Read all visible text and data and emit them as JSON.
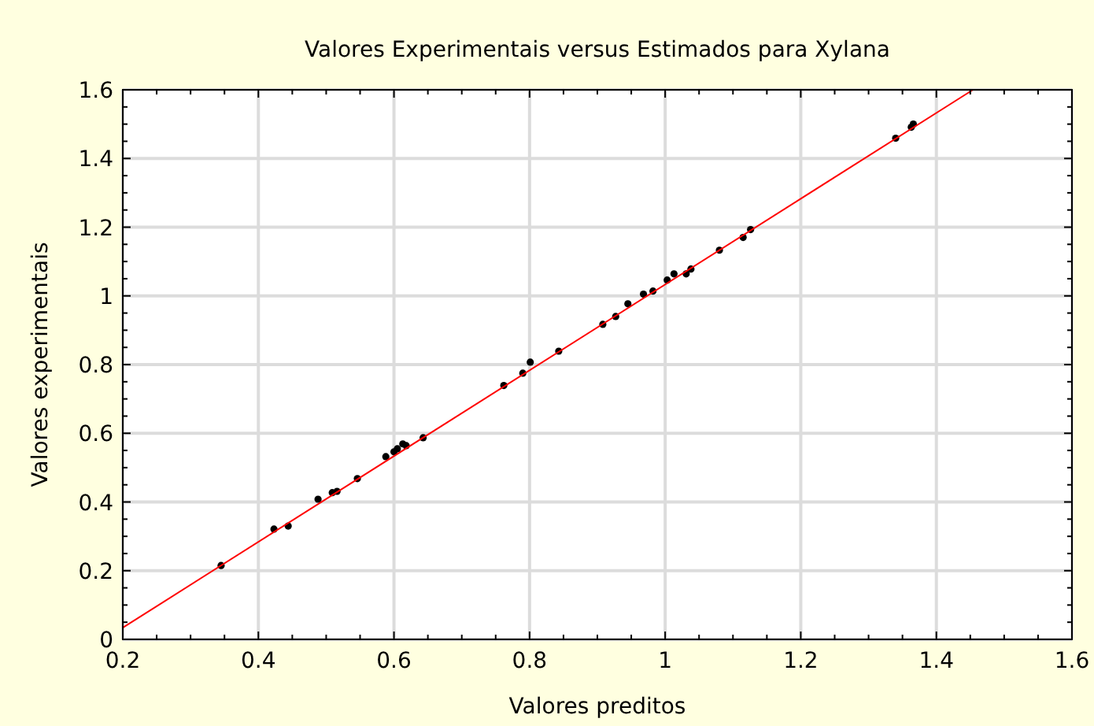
{
  "chart_data": {
    "type": "scatter",
    "title": "Valores Experimentais versus Estimados para Xylana",
    "xlabel": "Valores preditos",
    "ylabel": "Valores experimentais",
    "xlim": [
      0.2,
      1.6
    ],
    "ylim": [
      0,
      1.6
    ],
    "xticks": [
      0.2,
      0.4,
      0.6,
      0.8,
      1,
      1.2,
      1.4,
      1.6
    ],
    "yticks": [
      0,
      0.2,
      0.4,
      0.6,
      0.8,
      1,
      1.2,
      1.4,
      1.6
    ],
    "grid": true,
    "series": [
      {
        "color": "#000000",
        "marker": "circle",
        "x": [
          0.345,
          0.423,
          0.444,
          0.488,
          0.509,
          0.516,
          0.546,
          0.588,
          0.6,
          0.605,
          0.613,
          0.618,
          0.643,
          0.762,
          0.79,
          0.801,
          0.843,
          0.908,
          0.927,
          0.945,
          0.968,
          0.982,
          1.003,
          1.013,
          1.031,
          1.038,
          1.08,
          1.115,
          1.126,
          1.34,
          1.363,
          1.366
        ],
        "values": [
          0.215,
          0.321,
          0.33,
          0.408,
          0.427,
          0.431,
          0.468,
          0.532,
          0.546,
          0.555,
          0.569,
          0.564,
          0.587,
          0.739,
          0.775,
          0.807,
          0.839,
          0.917,
          0.94,
          0.977,
          1.005,
          1.014,
          1.046,
          1.064,
          1.064,
          1.078,
          1.133,
          1.17,
          1.193,
          1.459,
          1.491,
          1.5
        ]
      },
      {
        "type": "line",
        "color": "#ff0000",
        "x": [
          0.2,
          1.454
        ],
        "values": [
          0.034,
          1.6
        ]
      }
    ]
  }
}
